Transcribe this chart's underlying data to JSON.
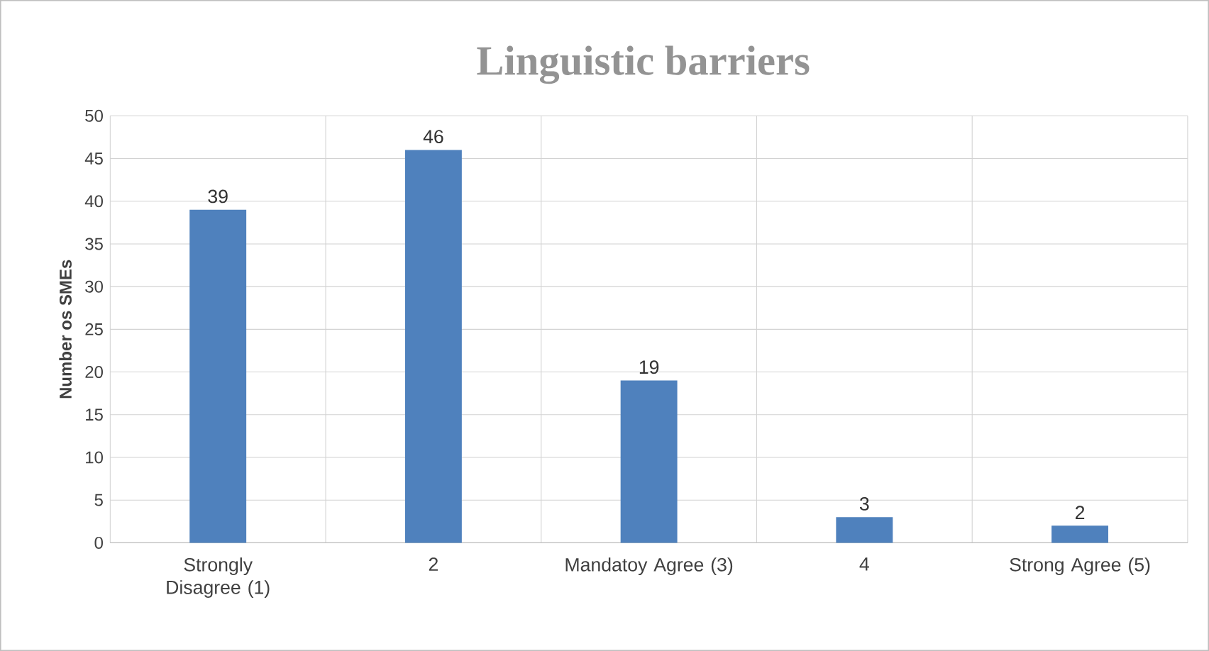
{
  "chart_data": {
    "type": "bar",
    "title": "Linguistic barriers",
    "ylabel": "Number os SMEs",
    "categories": [
      "Strongly Disagree (1)",
      "2",
      "Mandatoy Agree (3)",
      "4",
      "Strong Agree (5)"
    ],
    "values": [
      39,
      46,
      19,
      3,
      2
    ],
    "color": "#4f81bd",
    "ylim": [
      0,
      50
    ],
    "yticks": [
      0,
      5,
      10,
      15,
      20,
      25,
      30,
      35,
      40,
      45,
      50
    ],
    "grid": true,
    "data_labels": true
  }
}
